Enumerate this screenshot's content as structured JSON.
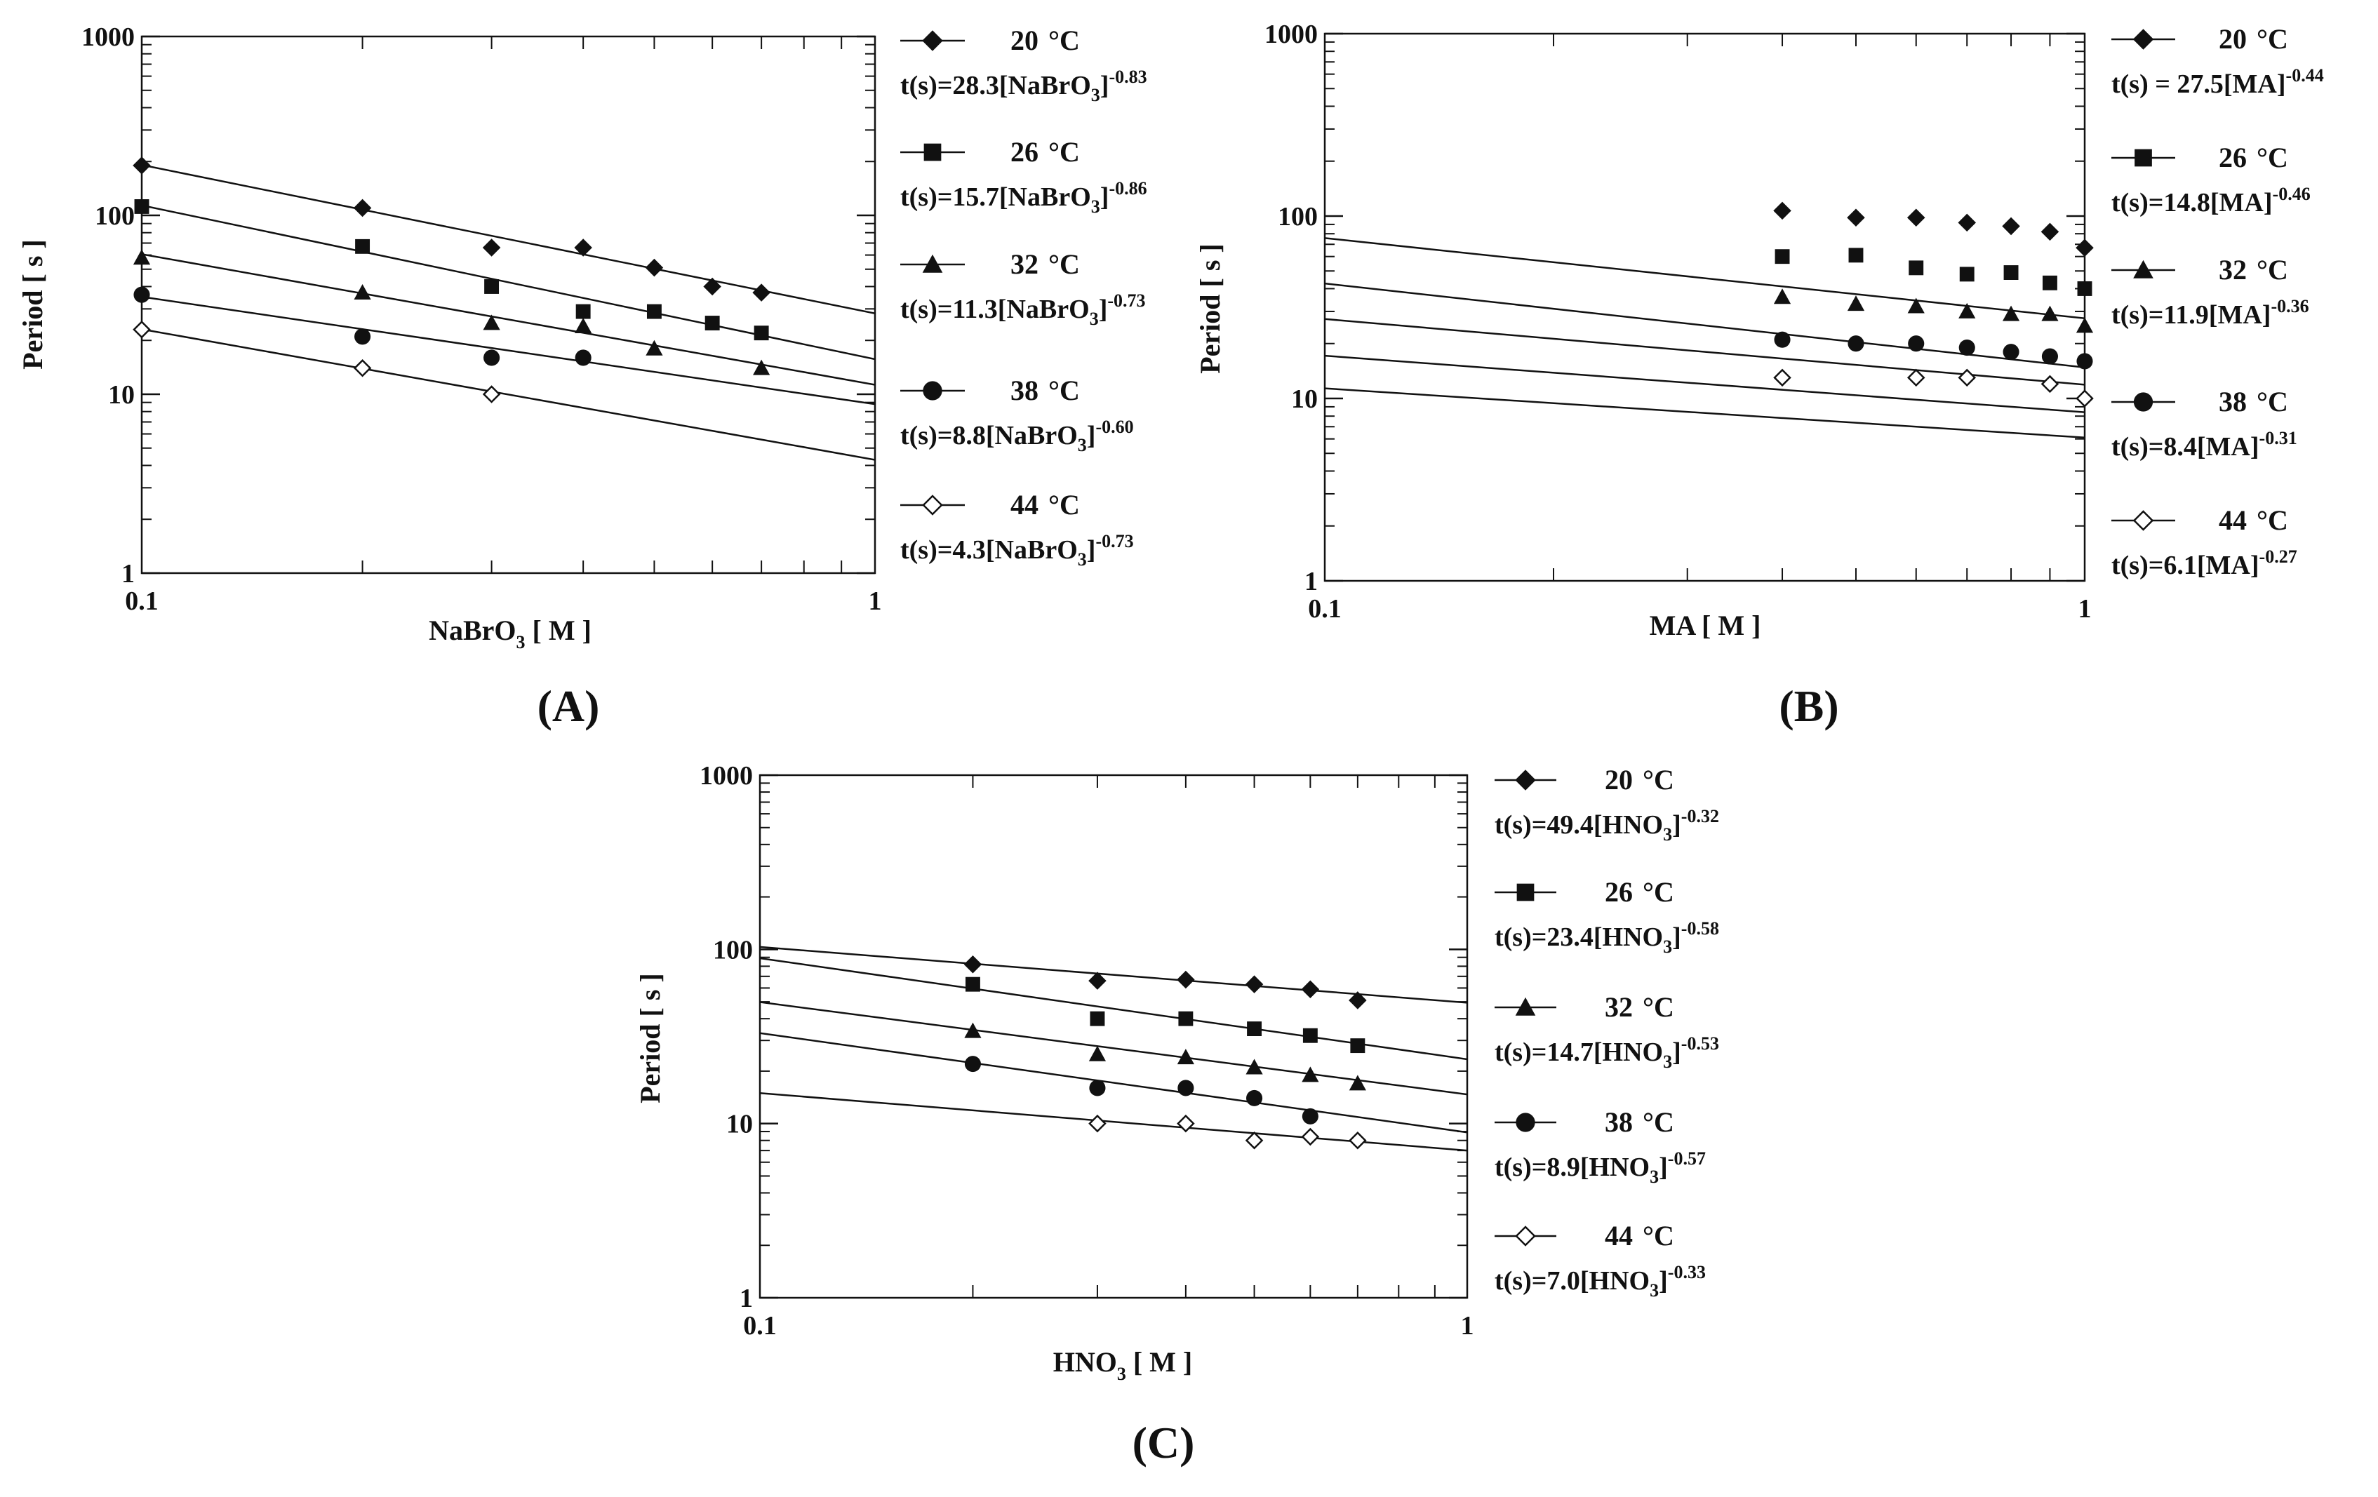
{
  "chart_data": [
    {
      "id": "A",
      "type": "scatter",
      "panel_label": "(A)",
      "xlabel_main": "NaBrO",
      "xlabel_sub": "3",
      "xlabel_tail": " [ M ]",
      "ylabel": "Period [ s ]",
      "xscale": "log",
      "yscale": "log",
      "xlim": [
        0.1,
        1
      ],
      "ylim": [
        1,
        1000
      ],
      "xticks": [
        {
          "v": 0.1,
          "label": "0.1"
        },
        {
          "v": 1,
          "label": "1"
        }
      ],
      "yticks": [
        {
          "v": 1,
          "label": "1"
        },
        {
          "v": 10,
          "label": "10"
        },
        {
          "v": 100,
          "label": "100"
        },
        {
          "v": 1000,
          "label": "1000"
        }
      ],
      "series": [
        {
          "name": "20 °C",
          "temp": "20",
          "unit": "°C",
          "marker": "diamond-filled",
          "eq": {
            "pre": "t(s)=28.3[NaBrO",
            "sub": "3",
            "post": "]",
            "exp": "-0.83"
          },
          "fit": {
            "a": 28.3,
            "b": -0.83
          },
          "x": [
            0.1,
            0.2,
            0.3,
            0.4,
            0.5,
            0.6,
            0.7
          ],
          "y": [
            190,
            110,
            66,
            66,
            51,
            40,
            37
          ]
        },
        {
          "name": "26 °C",
          "temp": "26",
          "unit": "°C",
          "marker": "square-filled",
          "eq": {
            "pre": "t(s)=15.7[NaBrO",
            "sub": "3",
            "post": "]",
            "exp": "-0.86"
          },
          "fit": {
            "a": 15.7,
            "b": -0.86
          },
          "x": [
            0.1,
            0.2,
            0.3,
            0.4,
            0.5,
            0.6,
            0.7
          ],
          "y": [
            112,
            67,
            40,
            29,
            29,
            25,
            22
          ]
        },
        {
          "name": "32 °C",
          "temp": "32",
          "unit": "°C",
          "marker": "triangle-filled",
          "eq": {
            "pre": "t(s)=11.3[NaBrO",
            "sub": "3",
            "post": "]",
            "exp": "-0.73"
          },
          "fit": {
            "a": 11.3,
            "b": -0.73
          },
          "x": [
            0.1,
            0.2,
            0.3,
            0.4,
            0.5,
            0.7
          ],
          "y": [
            58,
            37,
            25,
            24,
            18,
            14
          ]
        },
        {
          "name": "38 °C",
          "temp": "38",
          "unit": "°C",
          "marker": "circle-filled",
          "eq": {
            "pre": "t(s)=8.8[NaBrO",
            "sub": "3",
            "post": "]",
            "exp": "-0.60"
          },
          "fit": {
            "a": 8.8,
            "b": -0.6
          },
          "x": [
            0.1,
            0.2,
            0.3,
            0.4
          ],
          "y": [
            36,
            21,
            16,
            16
          ]
        },
        {
          "name": "44 °C",
          "temp": "44",
          "unit": "°C",
          "marker": "diamond-open",
          "eq": {
            "pre": "t(s)=4.3[NaBrO",
            "sub": "3",
            "post": "]",
            "exp": "-0.73"
          },
          "fit": {
            "a": 4.3,
            "b": -0.73
          },
          "x": [
            0.1,
            0.2,
            0.3
          ],
          "y": [
            23,
            14,
            10
          ]
        }
      ]
    },
    {
      "id": "B",
      "type": "scatter",
      "panel_label": "(B)",
      "xlabel_main": "MA [ M ]",
      "xlabel_sub": "",
      "xlabel_tail": "",
      "ylabel": "Period [ s ]",
      "xscale": "log",
      "yscale": "log",
      "xlim": [
        0.1,
        1
      ],
      "ylim": [
        1,
        1000
      ],
      "xticks": [
        {
          "v": 0.1,
          "label": "0.1"
        },
        {
          "v": 1,
          "label": "1"
        }
      ],
      "yticks": [
        {
          "v": 1,
          "label": "1"
        },
        {
          "v": 10,
          "label": "10"
        },
        {
          "v": 100,
          "label": "100"
        },
        {
          "v": 1000,
          "label": "1000"
        }
      ],
      "series": [
        {
          "name": "20 °C",
          "temp": "20",
          "unit": "°C",
          "marker": "diamond-filled",
          "eq": {
            "pre": "t(s) = 27.5[MA]",
            "sub": "",
            "post": "",
            "exp": "-0.44"
          },
          "fit": {
            "a": 27.5,
            "b": -0.44
          },
          "x": [
            0.4,
            0.5,
            0.6,
            0.7,
            0.8,
            0.9,
            1.0
          ],
          "y": [
            107,
            98,
            98,
            92,
            88,
            82,
            67
          ]
        },
        {
          "name": "26 °C",
          "temp": "26",
          "unit": "°C",
          "marker": "square-filled",
          "eq": {
            "pre": "t(s)=14.8[MA]",
            "sub": "",
            "post": "",
            "exp": "-0.46"
          },
          "fit": {
            "a": 14.8,
            "b": -0.46
          },
          "x": [
            0.4,
            0.5,
            0.6,
            0.7,
            0.8,
            0.9,
            1.0
          ],
          "y": [
            60,
            61,
            52,
            48,
            49,
            43,
            40
          ]
        },
        {
          "name": "32 °C",
          "temp": "32",
          "unit": "°C",
          "marker": "triangle-filled",
          "eq": {
            "pre": "t(s)=11.9[MA]",
            "sub": "",
            "post": "",
            "exp": "-0.36"
          },
          "fit": {
            "a": 11.9,
            "b": -0.36
          },
          "x": [
            0.4,
            0.5,
            0.6,
            0.7,
            0.8,
            0.9,
            1.0
          ],
          "y": [
            36,
            33,
            32,
            30,
            29,
            29,
            25
          ]
        },
        {
          "name": "38 °C",
          "temp": "38",
          "unit": "°C",
          "marker": "circle-filled",
          "eq": {
            "pre": "t(s)=8.4[MA]",
            "sub": "",
            "post": "",
            "exp": "-0.31"
          },
          "fit": {
            "a": 8.4,
            "b": -0.31
          },
          "x": [
            0.4,
            0.5,
            0.6,
            0.7,
            0.8,
            0.9,
            1.0
          ],
          "y": [
            21,
            20,
            20,
            19,
            18,
            17,
            16
          ]
        },
        {
          "name": "44 °C",
          "temp": "44",
          "unit": "°C",
          "marker": "diamond-open",
          "eq": {
            "pre": "t(s)=6.1[MA]",
            "sub": "",
            "post": "",
            "exp": "-0.27"
          },
          "fit": {
            "a": 6.1,
            "b": -0.27
          },
          "x": [
            0.4,
            0.6,
            0.7,
            0.9,
            1.0
          ],
          "y": [
            13,
            13,
            13,
            12,
            10
          ]
        }
      ]
    },
    {
      "id": "C",
      "type": "scatter",
      "panel_label": "(C)",
      "xlabel_main": "HNO",
      "xlabel_sub": "3",
      "xlabel_tail": " [ M ]",
      "ylabel": "Period [ s ]",
      "xscale": "log",
      "yscale": "log",
      "xlim": [
        0.1,
        1
      ],
      "ylim": [
        1,
        1000
      ],
      "xticks": [
        {
          "v": 0.1,
          "label": "0.1"
        },
        {
          "v": 1,
          "label": "1"
        }
      ],
      "yticks": [
        {
          "v": 1,
          "label": "1"
        },
        {
          "v": 10,
          "label": "10"
        },
        {
          "v": 100,
          "label": "100"
        },
        {
          "v": 1000,
          "label": "1000"
        }
      ],
      "series": [
        {
          "name": "20 °C",
          "temp": "20",
          "unit": "°C",
          "marker": "diamond-filled",
          "eq": {
            "pre": "t(s)=49.4[HNO",
            "sub": "3",
            "post": "]",
            "exp": "-0.32"
          },
          "fit": {
            "a": 49.4,
            "b": -0.32
          },
          "x": [
            0.2,
            0.3,
            0.4,
            0.5,
            0.6,
            0.7
          ],
          "y": [
            82,
            66,
            67,
            63,
            59,
            51
          ]
        },
        {
          "name": "26 °C",
          "temp": "26",
          "unit": "°C",
          "marker": "square-filled",
          "eq": {
            "pre": "t(s)=23.4[HNO",
            "sub": "3",
            "post": "]",
            "exp": "-0.58"
          },
          "fit": {
            "a": 23.4,
            "b": -0.58
          },
          "x": [
            0.2,
            0.3,
            0.4,
            0.5,
            0.6,
            0.7
          ],
          "y": [
            63,
            40,
            40,
            35,
            32,
            28
          ]
        },
        {
          "name": "32 °C",
          "temp": "32",
          "unit": "°C",
          "marker": "triangle-filled",
          "eq": {
            "pre": "t(s)=14.7[HNO",
            "sub": "3",
            "post": "]",
            "exp": "-0.53"
          },
          "fit": {
            "a": 14.7,
            "b": -0.53
          },
          "x": [
            0.2,
            0.3,
            0.4,
            0.5,
            0.6,
            0.7
          ],
          "y": [
            34,
            25,
            24,
            21,
            19,
            17
          ]
        },
        {
          "name": "38 °C",
          "temp": "38",
          "unit": "°C",
          "marker": "circle-filled",
          "eq": {
            "pre": "t(s)=8.9[HNO",
            "sub": "3",
            "post": "]",
            "exp": "-0.57"
          },
          "fit": {
            "a": 8.9,
            "b": -0.57
          },
          "x": [
            0.2,
            0.3,
            0.4,
            0.5,
            0.6
          ],
          "y": [
            22,
            16,
            16,
            14,
            11
          ]
        },
        {
          "name": "44 °C",
          "temp": "44",
          "unit": "°C",
          "marker": "diamond-open",
          "eq": {
            "pre": "t(s)=7.0[HNO",
            "sub": "3",
            "post": "]",
            "exp": "-0.33"
          },
          "fit": {
            "a": 7.0,
            "b": -0.33
          },
          "x": [
            0.3,
            0.4,
            0.5,
            0.6,
            0.7
          ],
          "y": [
            10,
            10,
            8,
            8.4,
            8
          ]
        }
      ]
    }
  ]
}
